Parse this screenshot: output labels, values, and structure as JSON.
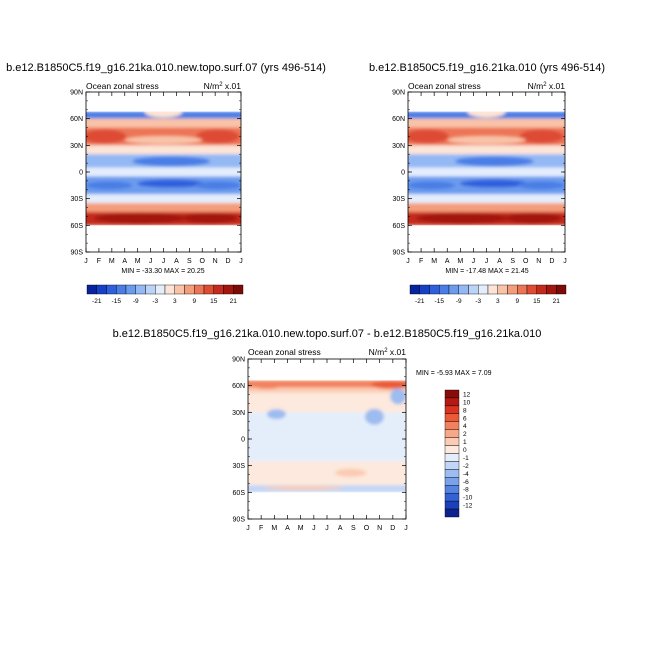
{
  "chart_data": [
    {
      "type": "heatmap",
      "title": "b.e12.B1850C5.f19_g16.21ka.010.new.topo.surf.07 (yrs 496-514)",
      "left_label": "Ocean zonal stress",
      "units": "N/m",
      "units_sup": "2",
      "units_suffix": " x.01",
      "x_ticks": [
        "J",
        "F",
        "M",
        "A",
        "M",
        "J",
        "J",
        "A",
        "S",
        "O",
        "N",
        "D",
        "J"
      ],
      "y_ticks": [
        "90N",
        "60N",
        "30N",
        "0",
        "30S",
        "60S",
        "90S"
      ],
      "ylim": [
        -90,
        90
      ],
      "stats": "MIN = -33.30 MAX =  20.25",
      "min": -33.3,
      "max": 20.25,
      "colorbar": {
        "orientation": "horizontal",
        "levels": [
          -21,
          -18,
          -15,
          -12,
          -9,
          -6,
          -3,
          0,
          3,
          6,
          9,
          12,
          15,
          18,
          21
        ],
        "labels": [
          "-21",
          "-15",
          "-9",
          "-3",
          "3",
          "9",
          "15",
          "21"
        ],
        "colors": [
          "#08239c",
          "#1740c8",
          "#2f5fdc",
          "#4a7ee6",
          "#6c9bee",
          "#93b8f4",
          "#bcd3f8",
          "#e3edfb",
          "#fde4d6",
          "#f9c3a8",
          "#f49d7c",
          "#ec7555",
          "#de4c34",
          "#c42b1e",
          "#a3160f",
          "#7c0a07"
        ]
      },
      "zones": [
        {
          "lat_max": 68,
          "lat_min": 60,
          "value": -12
        },
        {
          "lat_max": 60,
          "lat_min": 50,
          "value": 4
        },
        {
          "lat_max": 50,
          "lat_min": 30,
          "value": 12
        },
        {
          "lat_max": 30,
          "lat_min": 20,
          "value": 2
        },
        {
          "lat_max": 20,
          "lat_min": 5,
          "value": -8
        },
        {
          "lat_max": 5,
          "lat_min": -5,
          "value": -2
        },
        {
          "lat_max": -5,
          "lat_min": -25,
          "value": -10
        },
        {
          "lat_max": -25,
          "lat_min": -35,
          "value": 0
        },
        {
          "lat_max": -35,
          "lat_min": -45,
          "value": 8
        },
        {
          "lat_max": -45,
          "lat_min": -60,
          "value": 18
        }
      ]
    },
    {
      "type": "heatmap",
      "title": "b.e12.B1850C5.f19_g16.21ka.010 (yrs 496-514)",
      "left_label": "Ocean zonal stress",
      "units": "N/m",
      "units_sup": "2",
      "units_suffix": " x.01",
      "x_ticks": [
        "J",
        "F",
        "M",
        "A",
        "M",
        "J",
        "J",
        "A",
        "S",
        "O",
        "N",
        "D",
        "J"
      ],
      "y_ticks": [
        "90N",
        "60N",
        "30N",
        "0",
        "30S",
        "60S",
        "90S"
      ],
      "ylim": [
        -90,
        90
      ],
      "stats": "MIN = -17.48 MAX =  21.45",
      "min": -17.48,
      "max": 21.45,
      "colorbar": {
        "orientation": "horizontal",
        "levels": [
          -21,
          -18,
          -15,
          -12,
          -9,
          -6,
          -3,
          0,
          3,
          6,
          9,
          12,
          15,
          18,
          21
        ],
        "labels": [
          "-21",
          "-15",
          "-9",
          "-3",
          "3",
          "9",
          "15",
          "21"
        ],
        "colors": [
          "#08239c",
          "#1740c8",
          "#2f5fdc",
          "#4a7ee6",
          "#6c9bee",
          "#93b8f4",
          "#bcd3f8",
          "#e3edfb",
          "#fde4d6",
          "#f9c3a8",
          "#f49d7c",
          "#ec7555",
          "#de4c34",
          "#c42b1e",
          "#a3160f",
          "#7c0a07"
        ]
      },
      "zones": [
        {
          "lat_max": 68,
          "lat_min": 60,
          "value": -12
        },
        {
          "lat_max": 60,
          "lat_min": 50,
          "value": 4
        },
        {
          "lat_max": 50,
          "lat_min": 30,
          "value": 12
        },
        {
          "lat_max": 30,
          "lat_min": 20,
          "value": 2
        },
        {
          "lat_max": 20,
          "lat_min": 5,
          "value": -8
        },
        {
          "lat_max": 5,
          "lat_min": -5,
          "value": -2
        },
        {
          "lat_max": -5,
          "lat_min": -25,
          "value": -10
        },
        {
          "lat_max": -25,
          "lat_min": -35,
          "value": 0
        },
        {
          "lat_max": -35,
          "lat_min": -45,
          "value": 8
        },
        {
          "lat_max": -45,
          "lat_min": -60,
          "value": 18
        }
      ]
    },
    {
      "type": "heatmap",
      "title": "b.e12.B1850C5.f19_g16.21ka.010.new.topo.surf.07 - b.e12.B1850C5.f19_g16.21ka.010",
      "left_label": "Ocean zonal stress",
      "units": "N/m",
      "units_sup": "2",
      "units_suffix": " x.01",
      "x_ticks": [
        "J",
        "F",
        "M",
        "A",
        "M",
        "J",
        "J",
        "A",
        "S",
        "O",
        "N",
        "D",
        "J"
      ],
      "y_ticks": [
        "90N",
        "60N",
        "30N",
        "0",
        "30S",
        "60S",
        "90S"
      ],
      "ylim": [
        -90,
        90
      ],
      "stats": "MIN =  -5.93 MAX =   7.09",
      "min": -5.93,
      "max": 7.09,
      "colorbar": {
        "orientation": "vertical",
        "labels": [
          "12",
          "10",
          "8",
          "6",
          "4",
          "2",
          "1",
          "0",
          "-1",
          "-2",
          "-4",
          "-6",
          "-8",
          "-10",
          "-12"
        ],
        "colors": [
          "#8a0c0a",
          "#b51a12",
          "#d9341f",
          "#ea5a38",
          "#f2825f",
          "#f7a888",
          "#fbcbb3",
          "#fde9dd",
          "#e4eefb",
          "#c2d6f6",
          "#9dbcf0",
          "#7aa2ea",
          "#5583e2",
          "#3462d6",
          "#1a41bb",
          "#0a238f"
        ]
      },
      "zones": [
        {
          "lat_max": 66,
          "lat_min": 58,
          "value": 6
        },
        {
          "lat_max": 58,
          "lat_min": 52,
          "value": 1.5
        },
        {
          "lat_max": 52,
          "lat_min": 30,
          "value": 0.5
        },
        {
          "lat_max": 30,
          "lat_min": -25,
          "value": -0.5
        },
        {
          "lat_max": -25,
          "lat_min": -45,
          "value": 0.5
        },
        {
          "lat_max": -45,
          "lat_min": -52,
          "value": 1
        },
        {
          "lat_max": -52,
          "lat_min": -60,
          "value": -1.5
        }
      ]
    }
  ]
}
